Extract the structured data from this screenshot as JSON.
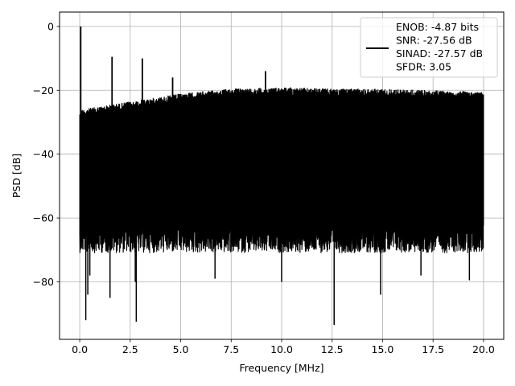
{
  "chart_data": {
    "type": "line",
    "title": "",
    "xlabel": "Frequency [MHz]",
    "ylabel": "PSD [dB]",
    "xlim": [
      -1.0,
      21.0
    ],
    "ylim": [
      -98,
      4.5
    ],
    "xticks": [
      0.0,
      2.5,
      5.0,
      7.5,
      10.0,
      12.5,
      15.0,
      17.5,
      20.0
    ],
    "xtick_labels": [
      "0.0",
      "2.5",
      "5.0",
      "7.5",
      "10.0",
      "12.5",
      "15.0",
      "17.5",
      "20.0"
    ],
    "yticks": [
      0,
      -20,
      -40,
      -60,
      -80
    ],
    "ytick_labels": [
      "0",
      "−20",
      "−40",
      "−60",
      "−80"
    ],
    "grid": true,
    "legend_position": "top-right",
    "legend_lines": [
      "ENOB: -4.87 bits",
      "SNR: -27.56 dB",
      "SINAD: -27.57 dB",
      "SFDR: 3.05"
    ],
    "series": [
      {
        "color": "#000000",
        "noise_floor_top_db": [
          [
            0,
            -26
          ],
          [
            2.5,
            -23.5
          ],
          [
            5,
            -21
          ],
          [
            7.5,
            -19.5
          ],
          [
            10,
            -19
          ],
          [
            12.5,
            -19.5
          ],
          [
            15,
            -19.5
          ],
          [
            17.5,
            -20
          ],
          [
            20,
            -20.5
          ]
        ],
        "noise_floor_bottom_db": -67,
        "peaks": [
          {
            "x": 0.05,
            "y": 0
          },
          {
            "x": 1.6,
            "y": -9.5
          },
          {
            "x": 3.1,
            "y": -10
          },
          {
            "x": 4.6,
            "y": -16
          },
          {
            "x": 9.2,
            "y": -14
          }
        ],
        "dips": [
          {
            "x": 0.3,
            "y": -92
          },
          {
            "x": 0.4,
            "y": -84
          },
          {
            "x": 0.5,
            "y": -78
          },
          {
            "x": 1.5,
            "y": -85
          },
          {
            "x": 2.8,
            "y": -92.5
          },
          {
            "x": 2.75,
            "y": -80
          },
          {
            "x": 6.7,
            "y": -79
          },
          {
            "x": 10.0,
            "y": -80
          },
          {
            "x": 12.6,
            "y": -93.5
          },
          {
            "x": 14.9,
            "y": -84
          },
          {
            "x": 16.9,
            "y": -78
          },
          {
            "x": 19.3,
            "y": -79.5
          }
        ]
      }
    ]
  }
}
